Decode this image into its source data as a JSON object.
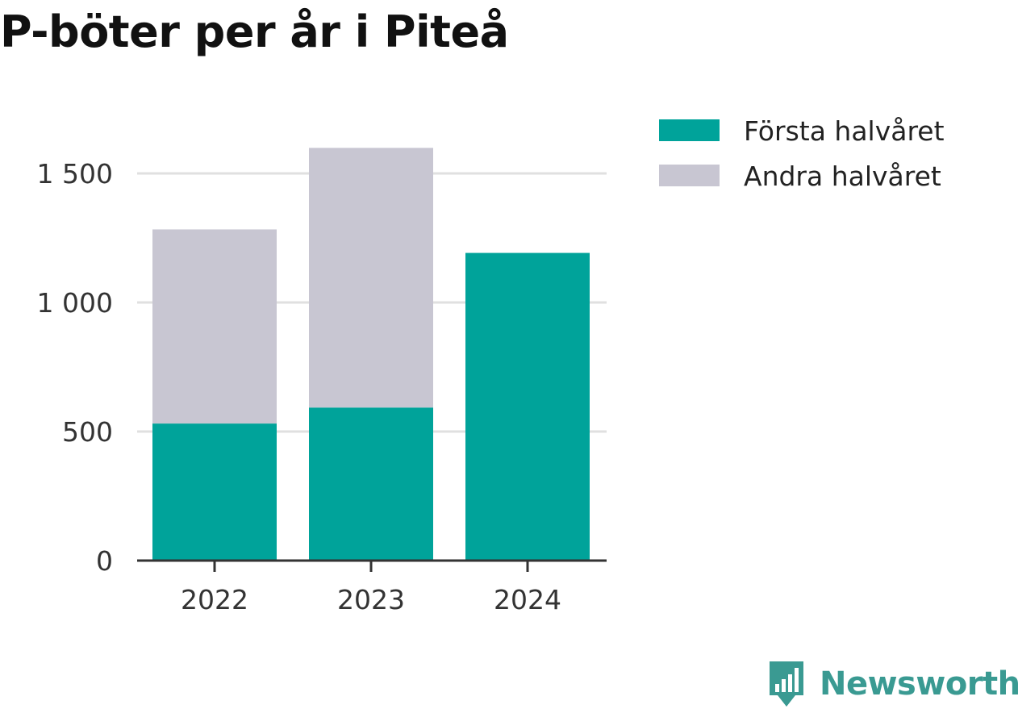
{
  "chart_data": {
    "type": "bar",
    "stacked": true,
    "title": "P-böter per år i Piteå",
    "categories": [
      "2022",
      "2023",
      "2024"
    ],
    "series": [
      {
        "name": "Första halvåret",
        "color": "#00a39a",
        "values": [
          531,
          593,
          1192
        ]
      },
      {
        "name": "Andra halvåret",
        "color": "#c8c6d2",
        "values": [
          752,
          1006,
          0
        ]
      }
    ],
    "ylim": [
      0,
      1600
    ],
    "yticks": [
      0,
      500,
      1000,
      1500
    ],
    "ytick_labels": [
      "0",
      "500",
      "1 000",
      "1 500"
    ],
    "xlabel": "",
    "ylabel": "",
    "grid": true,
    "legend_position": "top-right"
  },
  "branding": {
    "name": "Newsworthy",
    "icon": "newsworthy-logo-icon",
    "color": "#3a9a92"
  }
}
